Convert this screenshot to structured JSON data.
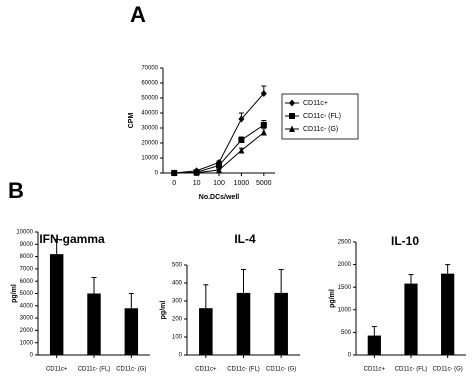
{
  "chart_data": [
    {
      "type": "line",
      "panel": "A",
      "xlabel": "No.DCs/well",
      "ylabel": "CPM",
      "categories": [
        "0",
        "10",
        "100",
        "1000",
        "5000"
      ],
      "ylim": [
        0,
        70000
      ],
      "yticks": [
        0,
        10000,
        20000,
        30000,
        40000,
        50000,
        60000,
        70000
      ],
      "legend": "right",
      "series": [
        {
          "name": "CD11c+",
          "color": "#000000",
          "marker": "diamond",
          "values": [
            0,
            1500,
            7000,
            36000,
            53000
          ],
          "errors": [
            0,
            500,
            1000,
            4000,
            5000
          ]
        },
        {
          "name": "CD11c- (FL)",
          "color": "#000000",
          "marker": "square",
          "values": [
            0,
            500,
            5000,
            22000,
            32000
          ],
          "errors": [
            0,
            300,
            800,
            2000,
            3000
          ]
        },
        {
          "name": "CD11c- (G)",
          "color": "#000000",
          "marker": "triangle",
          "values": [
            0,
            200,
            2000,
            15000,
            27000
          ],
          "errors": [
            0,
            200,
            500,
            1500,
            2500
          ]
        }
      ]
    },
    {
      "type": "bar",
      "panel": "B",
      "title": "IFN-gamma",
      "ylabel": "pg/ml",
      "color": "#000000",
      "categories": [
        "CD11c+",
        "CD11c- (FL)",
        "CD11c- (G)"
      ],
      "values": [
        8200,
        5000,
        3800
      ],
      "errors": [
        1200,
        1300,
        1200
      ],
      "ylim": [
        0,
        10000
      ],
      "yticks": [
        0,
        1000,
        2000,
        3000,
        4000,
        5000,
        6000,
        7000,
        8000,
        9000,
        10000
      ]
    },
    {
      "type": "bar",
      "title": "IL-4",
      "ylabel": "pg/ml",
      "color": "#000000",
      "categories": [
        "CD11c+",
        "CD11c- (FL)",
        "CD11c- (G)"
      ],
      "values": [
        260,
        345,
        345
      ],
      "errors": [
        130,
        130,
        130
      ],
      "ylim": [
        0,
        500
      ],
      "yticks": [
        0,
        100,
        200,
        300,
        400,
        500
      ]
    },
    {
      "type": "bar",
      "title": "IL-10",
      "ylabel": "pg/ml",
      "color": "#000000",
      "categories": [
        "CD11c+",
        "CD11c- (FL)",
        "CD11c- (G)"
      ],
      "values": [
        430,
        1580,
        1800
      ],
      "errors": [
        200,
        200,
        200
      ],
      "ylim": [
        0,
        2500
      ],
      "yticks": [
        0,
        500,
        1000,
        1500,
        2000,
        2500
      ]
    }
  ]
}
